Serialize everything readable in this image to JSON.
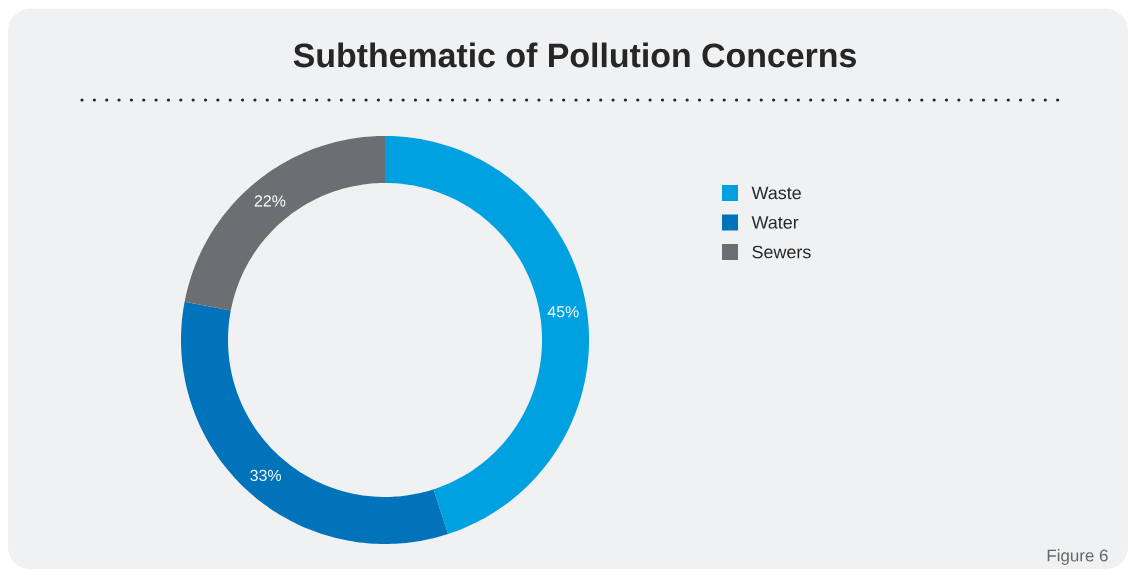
{
  "chart_data": {
    "type": "donut",
    "title": "Subthematic of Pollution Concerns",
    "categories": [
      "Waste",
      "Water",
      "Sewers"
    ],
    "values": [
      45,
      33,
      22
    ],
    "colors": [
      "#00a1e1",
      "#0073ba",
      "#6d6e71"
    ],
    "value_labels": [
      "45%",
      "33%",
      "22%"
    ],
    "legend": "right",
    "annotations": [
      "Figure 6"
    ]
  }
}
